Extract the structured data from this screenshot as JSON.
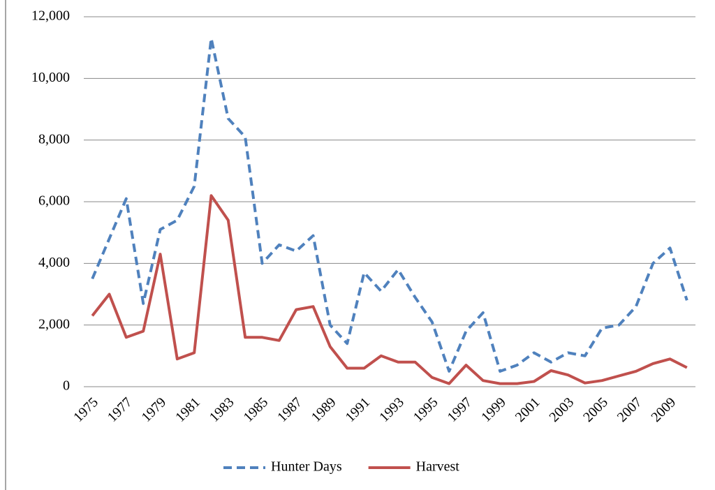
{
  "chart_data": {
    "type": "line",
    "categories": [
      "1975",
      null,
      "1977",
      null,
      "1979",
      null,
      "1981",
      null,
      "1983",
      null,
      "1985",
      null,
      "1987",
      null,
      "1989",
      null,
      "1991",
      null,
      "1993",
      null,
      "1995",
      null,
      "1997",
      null,
      "1999",
      null,
      "2001",
      null,
      "2003",
      null,
      "2005",
      null,
      "2007",
      null,
      "2009",
      null
    ],
    "series": [
      {
        "name": "Hunter Days",
        "color": "#4f81bd",
        "line_style": "dashed",
        "values": [
          3500,
          4800,
          6100,
          2700,
          5100,
          5400,
          6500,
          11300,
          8700,
          8100,
          4000,
          4600,
          4400,
          4900,
          2000,
          1400,
          3700,
          3100,
          3800,
          2900,
          2100,
          500,
          1800,
          2400,
          500,
          700,
          1100,
          800,
          1100,
          1000,
          1900,
          2000,
          2600,
          4000,
          4500,
          2800
        ]
      },
      {
        "name": "Harvest",
        "color": "#c0504d",
        "line_style": "solid",
        "values": [
          2300,
          3000,
          1600,
          1800,
          4300,
          900,
          1100,
          6200,
          5400,
          1600,
          1600,
          1500,
          2500,
          2600,
          1300,
          600,
          600,
          1000,
          800,
          800,
          300,
          100,
          700,
          200,
          100,
          100,
          170,
          520,
          380,
          120,
          200,
          350,
          500,
          750,
          900,
          620
        ]
      }
    ],
    "ylim": [
      0,
      12000
    ],
    "yticks": [
      0,
      {
        "value": 2000,
        "label": "2,000"
      },
      {
        "value": 4000,
        "label": "4,000"
      },
      {
        "value": 6000,
        "label": "6,000"
      },
      {
        "value": 8000,
        "label": "8,000"
      },
      {
        "value": 10000,
        "label": "10,000"
      },
      {
        "value": 12000,
        "label": "12,000"
      }
    ],
    "grid": true,
    "legend": "bottom"
  }
}
